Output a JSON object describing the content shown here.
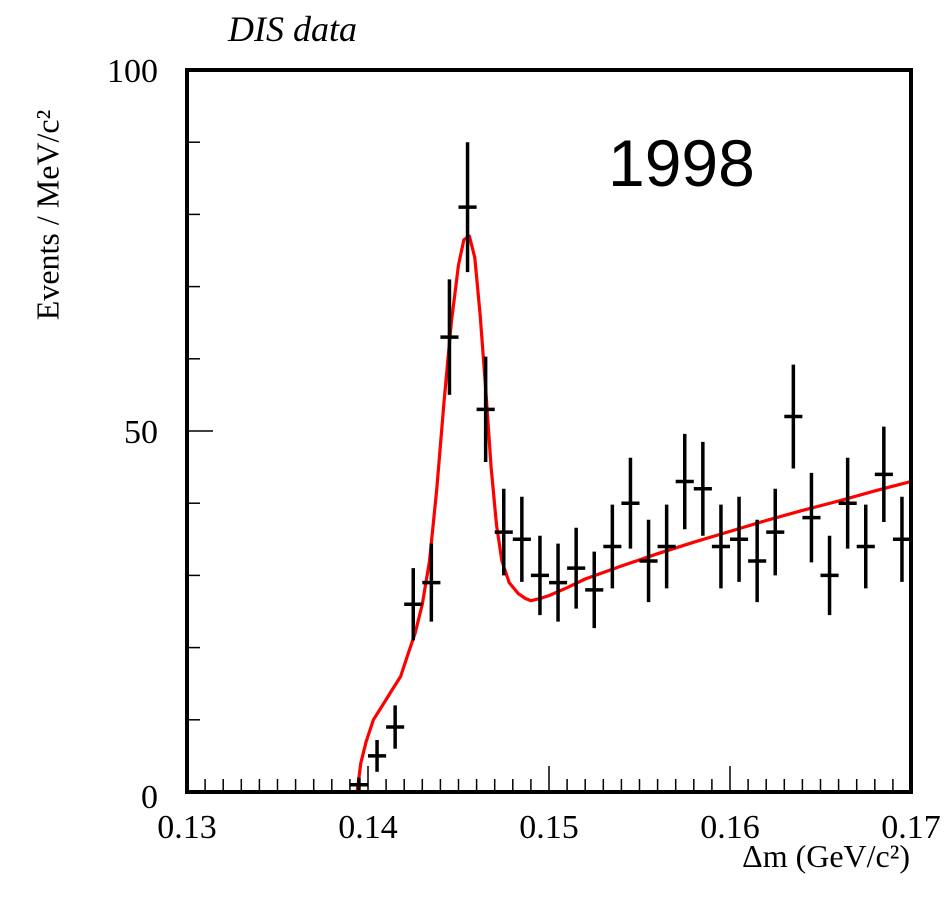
{
  "chart_data": {
    "type": "scatter",
    "title": "DIS data",
    "xlabel": "Δm  (GeV/c²)",
    "ylabel": "Events / MeV/c²",
    "annotation": "1998",
    "xlim": [
      0.13,
      0.17
    ],
    "ylim": [
      0,
      100
    ],
    "xticks": [
      "0.13",
      "0.14",
      "0.15",
      "0.16",
      "0.17"
    ],
    "yticks": [
      "0",
      "50",
      "100"
    ],
    "grid": false,
    "series": [
      {
        "kind": "errorbar",
        "color": "#000000",
        "points": [
          {
            "x": 0.1305,
            "y": 0,
            "err": 0
          },
          {
            "x": 0.1315,
            "y": 0,
            "err": 0
          },
          {
            "x": 0.1325,
            "y": 0,
            "err": 0
          },
          {
            "x": 0.1335,
            "y": 0,
            "err": 0
          },
          {
            "x": 0.1345,
            "y": 0,
            "err": 0
          },
          {
            "x": 0.1355,
            "y": 0,
            "err": 0
          },
          {
            "x": 0.1365,
            "y": 0,
            "err": 0
          },
          {
            "x": 0.1375,
            "y": 0,
            "err": 0
          },
          {
            "x": 0.1385,
            "y": 0,
            "err": 0
          },
          {
            "x": 0.1395,
            "y": 1,
            "err": 1
          },
          {
            "x": 0.1405,
            "y": 5,
            "err": 2.2
          },
          {
            "x": 0.1415,
            "y": 9,
            "err": 3
          },
          {
            "x": 0.1425,
            "y": 26,
            "err": 5
          },
          {
            "x": 0.1435,
            "y": 29,
            "err": 5.4
          },
          {
            "x": 0.1445,
            "y": 63,
            "err": 8
          },
          {
            "x": 0.1455,
            "y": 81,
            "err": 9
          },
          {
            "x": 0.1465,
            "y": 53,
            "err": 7.3
          },
          {
            "x": 0.1475,
            "y": 36,
            "err": 6
          },
          {
            "x": 0.1485,
            "y": 35,
            "err": 5.9
          },
          {
            "x": 0.1495,
            "y": 30,
            "err": 5.5
          },
          {
            "x": 0.1505,
            "y": 29,
            "err": 5.4
          },
          {
            "x": 0.1515,
            "y": 31,
            "err": 5.6
          },
          {
            "x": 0.1525,
            "y": 28,
            "err": 5.3
          },
          {
            "x": 0.1535,
            "y": 34,
            "err": 5.8
          },
          {
            "x": 0.1545,
            "y": 40,
            "err": 6.3
          },
          {
            "x": 0.1555,
            "y": 32,
            "err": 5.7
          },
          {
            "x": 0.1565,
            "y": 34,
            "err": 5.8
          },
          {
            "x": 0.1575,
            "y": 43,
            "err": 6.6
          },
          {
            "x": 0.1585,
            "y": 42,
            "err": 6.5
          },
          {
            "x": 0.1595,
            "y": 34,
            "err": 5.8
          },
          {
            "x": 0.1605,
            "y": 35,
            "err": 5.9
          },
          {
            "x": 0.1615,
            "y": 32,
            "err": 5.7
          },
          {
            "x": 0.1625,
            "y": 36,
            "err": 6
          },
          {
            "x": 0.1635,
            "y": 52,
            "err": 7.2
          },
          {
            "x": 0.1645,
            "y": 38,
            "err": 6.2
          },
          {
            "x": 0.1655,
            "y": 30,
            "err": 5.5
          },
          {
            "x": 0.1665,
            "y": 40,
            "err": 6.3
          },
          {
            "x": 0.1675,
            "y": 34,
            "err": 5.8
          },
          {
            "x": 0.1685,
            "y": 44,
            "err": 6.6
          },
          {
            "x": 0.1695,
            "y": 35,
            "err": 5.9
          }
        ]
      },
      {
        "kind": "line",
        "color": "#ff0000",
        "x": [
          0.1394,
          0.1396,
          0.1399,
          0.1403,
          0.1408,
          0.1413,
          0.1418,
          0.1422,
          0.1426,
          0.143,
          0.1434,
          0.1438,
          0.1442,
          0.1446,
          0.145,
          0.1453,
          0.1456,
          0.1459,
          0.1462,
          0.1465,
          0.1468,
          0.1471,
          0.1474,
          0.1478,
          0.1483,
          0.1487,
          0.149,
          0.1495,
          0.15,
          0.151,
          0.152,
          0.154,
          0.156,
          0.158,
          0.16,
          0.162,
          0.164,
          0.166,
          0.168,
          0.17
        ],
        "y": [
          0,
          4,
          7,
          10,
          12,
          14,
          16,
          19,
          22,
          26,
          32,
          42,
          54,
          65,
          73,
          76.5,
          77,
          74,
          66,
          56,
          45,
          37,
          32,
          29,
          27.5,
          26.8,
          26.5,
          26.8,
          27.2,
          28.3,
          29.5,
          31.3,
          33,
          34.6,
          36.1,
          37.6,
          39,
          40.3,
          41.7,
          43
        ]
      }
    ]
  }
}
